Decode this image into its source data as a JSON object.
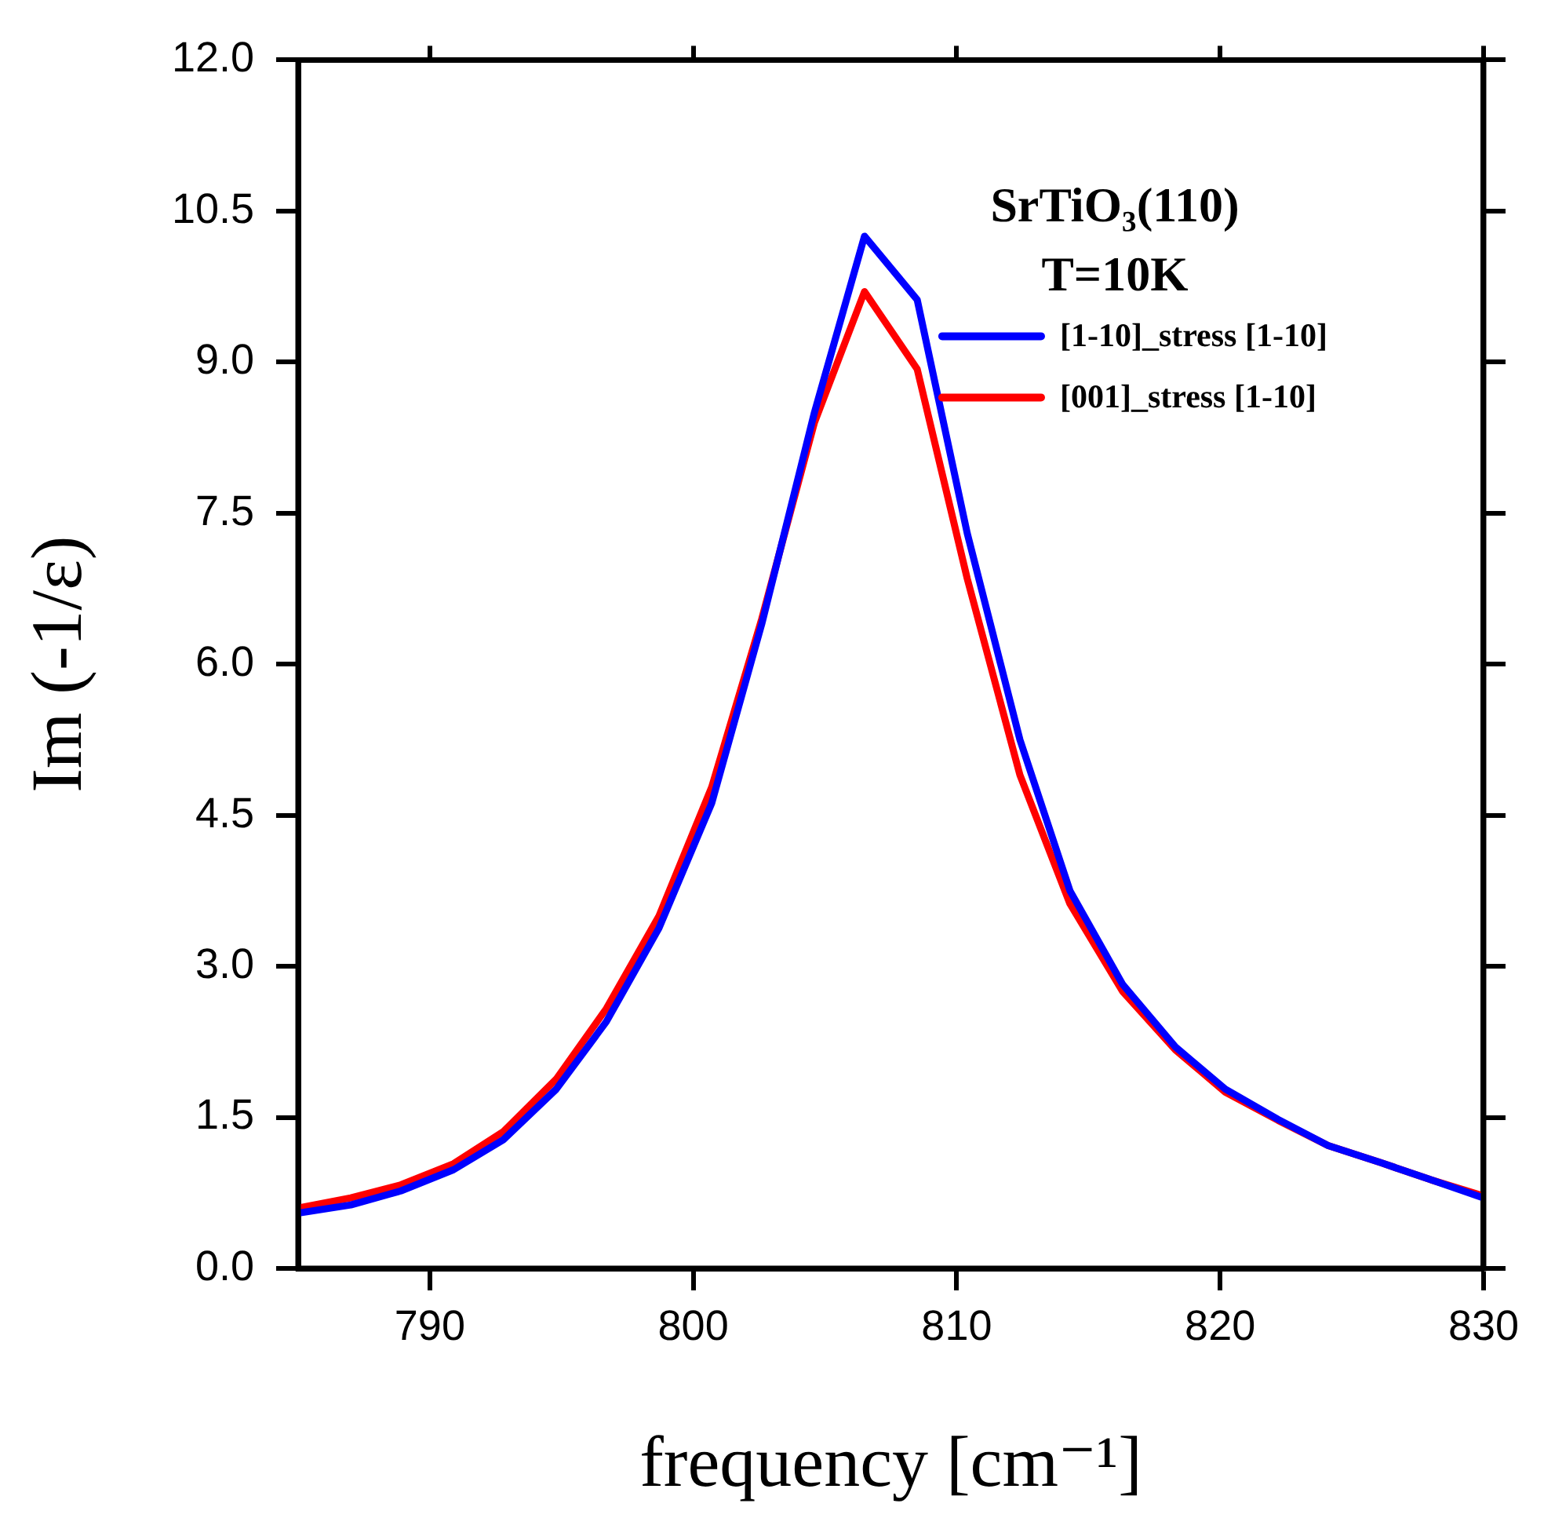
{
  "chart_data": {
    "type": "line",
    "xlabel": "frequency [cm⁻¹]",
    "ylabel": "Im (-1/ε)",
    "annotations": [
      "SrTiO₃(110)",
      "T=10K"
    ],
    "x": [
      785.0,
      787.0,
      788.9,
      790.9,
      792.8,
      794.8,
      796.7,
      798.7,
      800.7,
      802.6,
      804.6,
      806.5,
      808.5,
      810.4,
      812.4,
      814.3,
      816.3,
      818.3,
      820.2,
      822.2,
      824.1,
      826.1,
      828.0,
      830.0
    ],
    "series": [
      {
        "name": "[1-10]_stress [1-10]",
        "color": "#0000ff",
        "values": [
          0.55,
          0.63,
          0.77,
          0.98,
          1.28,
          1.78,
          2.45,
          3.38,
          4.62,
          6.4,
          8.5,
          10.25,
          9.62,
          7.3,
          5.25,
          3.75,
          2.82,
          2.2,
          1.78,
          1.48,
          1.22,
          1.05,
          0.88,
          0.7
        ]
      },
      {
        "name": "[001]_stress [1-10]",
        "color": "#ff0000",
        "values": [
          0.6,
          0.7,
          0.83,
          1.04,
          1.36,
          1.88,
          2.58,
          3.5,
          4.78,
          6.45,
          8.4,
          9.7,
          8.93,
          6.85,
          4.9,
          3.62,
          2.75,
          2.17,
          1.75,
          1.47,
          1.22,
          1.05,
          0.88,
          0.72
        ]
      }
    ],
    "xlim": [
      785,
      830
    ],
    "xticks": [
      790,
      800,
      810,
      820,
      830
    ],
    "ylim": [
      0,
      12
    ],
    "yticks": [
      {
        "value": 0,
        "label": "0.0"
      },
      {
        "value": 1.5,
        "label": "1.5"
      },
      {
        "value": 3,
        "label": "3.0"
      },
      {
        "value": 4.5,
        "label": "4.5"
      },
      {
        "value": 6,
        "label": "6.0"
      },
      {
        "value": 7.5,
        "label": "7.5"
      },
      {
        "value": 9,
        "label": "9.0"
      },
      {
        "value": 10.5,
        "label": "10.5"
      },
      {
        "value": 12,
        "label": "12.0"
      }
    ],
    "grid": false,
    "legend": "top right",
    "marker": "none",
    "line_style": "solid"
  }
}
